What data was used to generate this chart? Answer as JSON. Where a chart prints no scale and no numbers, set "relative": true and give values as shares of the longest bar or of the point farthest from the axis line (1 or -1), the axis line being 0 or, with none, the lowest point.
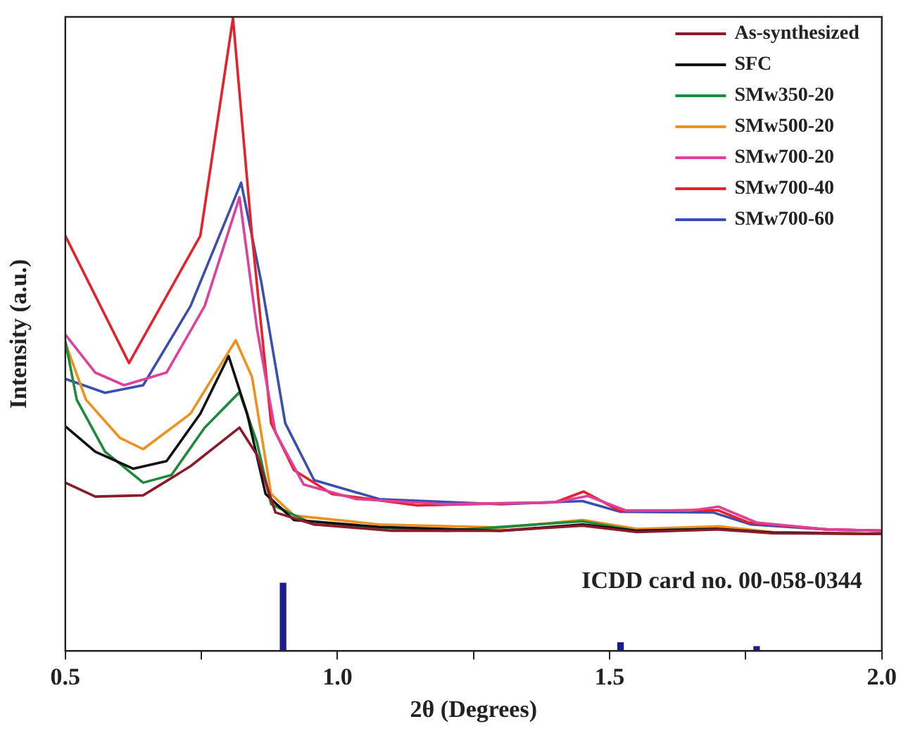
{
  "chart_data": {
    "type": "line",
    "xlabel": "2θ (Degrees)",
    "ylabel": "Intensity (a.u.)",
    "relative": true,
    "xlim": [
      0.5,
      2.0
    ],
    "xticks": [
      0.5,
      {
        "value": 0.75,
        "label": null
      },
      {
        "value": 1,
        "label": "1.0"
      },
      {
        "value": 1.25,
        "label": null
      },
      1.5,
      {
        "value": 1.75,
        "label": null
      },
      {
        "value": 2,
        "label": "2.0"
      }
    ],
    "grid": false,
    "legend": "top right",
    "marker": "none",
    "line_style": "solid",
    "annotations": [
      "ICDD card no. 00-058-0344"
    ],
    "series": [
      {
        "name": "As-synthesized",
        "color": "#8b1a2b",
        "x": [
          0.5,
          0.555,
          0.643,
          0.73,
          0.82,
          0.852,
          0.886,
          0.957,
          1.1,
          1.3,
          1.45,
          1.55,
          1.7,
          1.8,
          2.0
        ],
        "values": [
          0.266,
          0.244,
          0.246,
          0.292,
          0.353,
          0.31,
          0.219,
          0.2,
          0.19,
          0.19,
          0.198,
          0.188,
          0.192,
          0.186,
          0.185
        ]
      },
      {
        "name": "SFC",
        "color": "#111111",
        "x": [
          0.5,
          0.555,
          0.625,
          0.686,
          0.748,
          0.8,
          0.834,
          0.868,
          0.92,
          1.077,
          1.3,
          1.45,
          1.55,
          1.7,
          1.8,
          2.0
        ],
        "values": [
          0.355,
          0.315,
          0.288,
          0.3,
          0.375,
          0.466,
          0.375,
          0.248,
          0.207,
          0.196,
          0.19,
          0.2,
          0.19,
          0.193,
          0.187,
          0.185
        ]
      },
      {
        "name": "SMw350-20",
        "color": "#1e8a3c",
        "x": [
          0.5,
          0.521,
          0.573,
          0.643,
          0.695,
          0.756,
          0.82,
          0.852,
          0.878,
          0.957,
          1.2,
          1.45,
          1.55,
          1.7
        ],
        "values": [
          0.49,
          0.397,
          0.315,
          0.266,
          0.278,
          0.353,
          0.409,
          0.33,
          0.232,
          0.2,
          0.19,
          0.205,
          0.19,
          0.193
        ]
      },
      {
        "name": "SMw500-20",
        "color": "#f0901e",
        "x": [
          0.5,
          0.538,
          0.6,
          0.643,
          0.73,
          0.813,
          0.843,
          0.878,
          0.92,
          1.077,
          1.3,
          1.45,
          1.55,
          1.7,
          1.8,
          2.0
        ],
        "values": [
          0.487,
          0.397,
          0.337,
          0.319,
          0.375,
          0.491,
          0.433,
          0.248,
          0.214,
          0.2,
          0.195,
          0.207,
          0.193,
          0.197,
          0.188,
          0.185
        ]
      },
      {
        "name": "SMw700-20",
        "color": "#e0409a",
        "x": [
          0.5,
          0.555,
          0.608,
          0.686,
          0.756,
          0.82,
          0.852,
          0.886,
          0.938,
          1.035,
          1.2,
          1.4,
          1.46,
          1.53,
          1.65,
          1.7,
          1.77,
          1.9,
          2.0
        ],
        "values": [
          0.5,
          0.44,
          0.42,
          0.44,
          0.545,
          0.717,
          0.51,
          0.345,
          0.263,
          0.24,
          0.232,
          0.235,
          0.245,
          0.222,
          0.222,
          0.228,
          0.203,
          0.192,
          0.19
        ]
      },
      {
        "name": "SMw700-40",
        "color": "#e8202a",
        "x": [
          0.5,
          0.617,
          0.748,
          0.808,
          0.843,
          0.878,
          0.92,
          0.99,
          1.147,
          1.4,
          1.452,
          1.52,
          1.67,
          1.7,
          1.755,
          1.9,
          2.0
        ],
        "values": [
          0.656,
          0.455,
          0.656,
          1.0,
          0.656,
          0.36,
          0.286,
          0.248,
          0.23,
          0.235,
          0.252,
          0.221,
          0.223,
          0.222,
          0.203,
          0.192,
          0.19
        ]
      },
      {
        "name": "SMw700-60",
        "color": "#3a4fb0",
        "x": [
          0.5,
          0.573,
          0.643,
          0.73,
          0.823,
          0.86,
          0.904,
          0.957,
          1.077,
          1.3,
          1.45,
          1.52,
          1.69,
          1.76,
          1.9,
          2.0
        ],
        "values": [
          0.43,
          0.408,
          0.42,
          0.545,
          0.74,
          0.583,
          0.36,
          0.27,
          0.24,
          0.232,
          0.237,
          0.22,
          0.219,
          0.2,
          0.192,
          0.19
        ]
      },
      {
        "type": "bar",
        "color": "#1c1c8c",
        "x": [
          0.9,
          1.52,
          1.77
        ],
        "values": [
          0.107,
          0.013,
          0.007
        ]
      }
    ]
  }
}
